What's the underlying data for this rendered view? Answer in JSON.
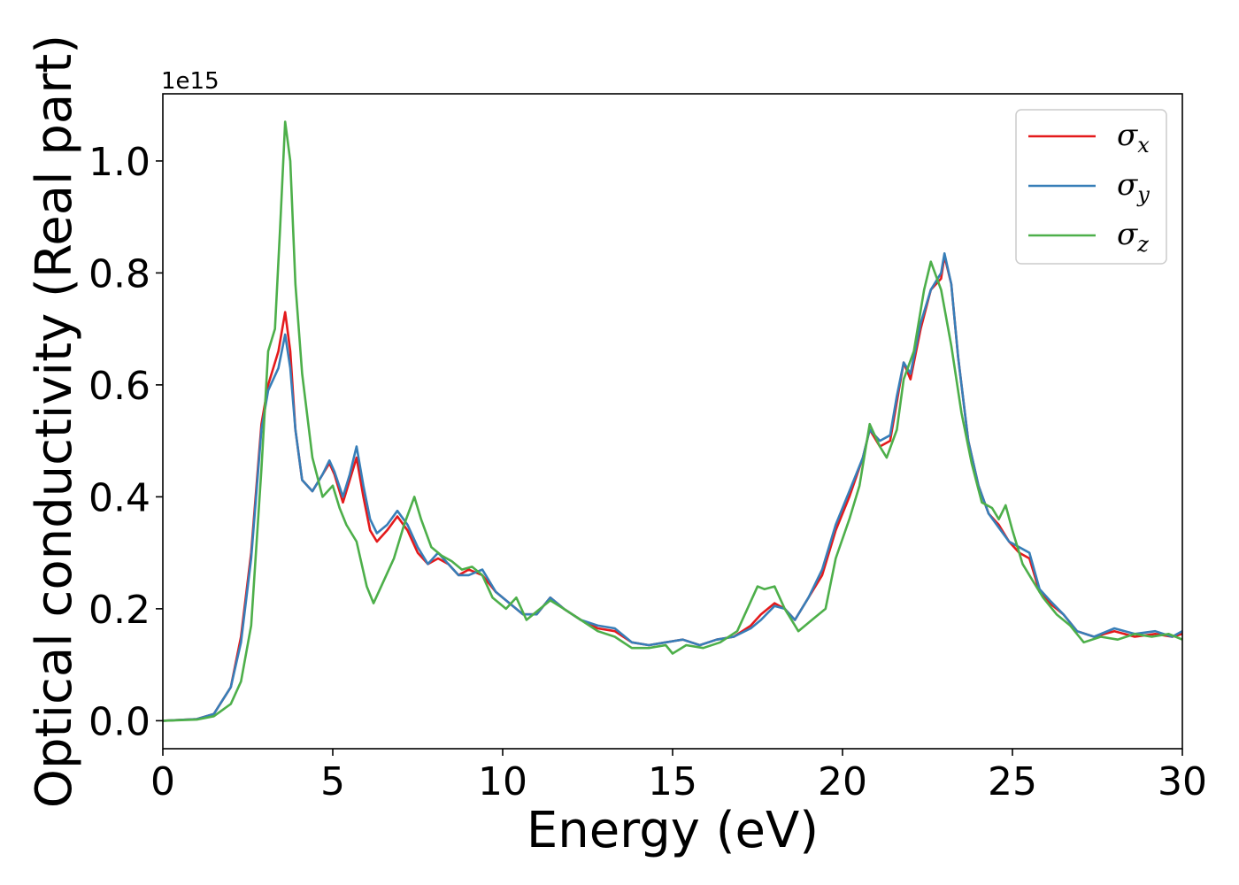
{
  "chart_data": {
    "type": "line",
    "xlabel": "Energy (eV)",
    "ylabel": "Optical conductivity (Real part)",
    "y_offset_text": "1e15",
    "xlim": [
      0,
      30
    ],
    "ylim": [
      -0.05,
      1.12
    ],
    "y_scale_factor": 1000000000000000.0,
    "x_ticks": [
      0,
      5,
      10,
      15,
      20,
      25,
      30
    ],
    "x_tick_labels": [
      "0",
      "5",
      "10",
      "15",
      "20",
      "25",
      "30"
    ],
    "y_ticks": [
      0.0,
      0.2,
      0.4,
      0.6,
      0.8,
      1.0
    ],
    "y_tick_labels": [
      "0.0",
      "0.2",
      "0.4",
      "0.6",
      "0.8",
      "1.0"
    ],
    "grid": false,
    "legend_position": "top-right",
    "series": [
      {
        "name": "σx",
        "legend_symbol": "σ",
        "legend_subscript": "x",
        "color": "#e41a1c",
        "points": [
          [
            0,
            0
          ],
          [
            1,
            0.003
          ],
          [
            1.5,
            0.012
          ],
          [
            2,
            0.06
          ],
          [
            2.3,
            0.15
          ],
          [
            2.6,
            0.3
          ],
          [
            2.9,
            0.53
          ],
          [
            3.1,
            0.6
          ],
          [
            3.4,
            0.66
          ],
          [
            3.6,
            0.73
          ],
          [
            3.75,
            0.66
          ],
          [
            3.9,
            0.52
          ],
          [
            4.1,
            0.43
          ],
          [
            4.4,
            0.41
          ],
          [
            4.7,
            0.44
          ],
          [
            4.9,
            0.46
          ],
          [
            5.05,
            0.44
          ],
          [
            5.3,
            0.39
          ],
          [
            5.5,
            0.43
          ],
          [
            5.7,
            0.47
          ],
          [
            5.9,
            0.4
          ],
          [
            6.1,
            0.34
          ],
          [
            6.3,
            0.32
          ],
          [
            6.6,
            0.34
          ],
          [
            6.9,
            0.365
          ],
          [
            7.2,
            0.34
          ],
          [
            7.5,
            0.3
          ],
          [
            7.8,
            0.28
          ],
          [
            8.1,
            0.29
          ],
          [
            8.4,
            0.28
          ],
          [
            8.7,
            0.26
          ],
          [
            9.0,
            0.27
          ],
          [
            9.4,
            0.26
          ],
          [
            9.8,
            0.23
          ],
          [
            10.2,
            0.21
          ],
          [
            10.6,
            0.19
          ],
          [
            11.0,
            0.19
          ],
          [
            11.4,
            0.22
          ],
          [
            11.8,
            0.2
          ],
          [
            12.3,
            0.18
          ],
          [
            12.8,
            0.165
          ],
          [
            13.3,
            0.16
          ],
          [
            13.8,
            0.14
          ],
          [
            14.3,
            0.135
          ],
          [
            14.8,
            0.14
          ],
          [
            15.3,
            0.145
          ],
          [
            15.8,
            0.135
          ],
          [
            16.3,
            0.145
          ],
          [
            16.8,
            0.15
          ],
          [
            17.3,
            0.17
          ],
          [
            17.6,
            0.19
          ],
          [
            18.0,
            0.21
          ],
          [
            18.3,
            0.2
          ],
          [
            18.6,
            0.18
          ],
          [
            19.0,
            0.22
          ],
          [
            19.4,
            0.26
          ],
          [
            19.8,
            0.34
          ],
          [
            20.2,
            0.4
          ],
          [
            20.6,
            0.47
          ],
          [
            20.8,
            0.52
          ],
          [
            21.1,
            0.49
          ],
          [
            21.4,
            0.5
          ],
          [
            21.6,
            0.57
          ],
          [
            21.8,
            0.64
          ],
          [
            22.0,
            0.61
          ],
          [
            22.3,
            0.7
          ],
          [
            22.6,
            0.77
          ],
          [
            22.9,
            0.79
          ],
          [
            23.0,
            0.83
          ],
          [
            23.2,
            0.78
          ],
          [
            23.4,
            0.65
          ],
          [
            23.7,
            0.5
          ],
          [
            24.0,
            0.42
          ],
          [
            24.3,
            0.37
          ],
          [
            24.6,
            0.35
          ],
          [
            24.9,
            0.32
          ],
          [
            25.2,
            0.3
          ],
          [
            25.5,
            0.29
          ],
          [
            25.8,
            0.23
          ],
          [
            26.1,
            0.21
          ],
          [
            26.5,
            0.19
          ],
          [
            26.9,
            0.16
          ],
          [
            27.4,
            0.15
          ],
          [
            28.0,
            0.16
          ],
          [
            28.6,
            0.15
          ],
          [
            29.2,
            0.155
          ],
          [
            29.7,
            0.15
          ],
          [
            30,
            0.155
          ]
        ]
      },
      {
        "name": "σy",
        "legend_symbol": "σ",
        "legend_subscript": "y",
        "color": "#377eb8",
        "points": [
          [
            0,
            0
          ],
          [
            1,
            0.003
          ],
          [
            1.5,
            0.012
          ],
          [
            2,
            0.06
          ],
          [
            2.3,
            0.14
          ],
          [
            2.6,
            0.29
          ],
          [
            2.9,
            0.52
          ],
          [
            3.1,
            0.59
          ],
          [
            3.4,
            0.63
          ],
          [
            3.6,
            0.69
          ],
          [
            3.75,
            0.63
          ],
          [
            3.9,
            0.52
          ],
          [
            4.1,
            0.43
          ],
          [
            4.4,
            0.41
          ],
          [
            4.7,
            0.44
          ],
          [
            4.9,
            0.465
          ],
          [
            5.05,
            0.445
          ],
          [
            5.3,
            0.4
          ],
          [
            5.5,
            0.44
          ],
          [
            5.7,
            0.49
          ],
          [
            5.9,
            0.42
          ],
          [
            6.1,
            0.36
          ],
          [
            6.3,
            0.335
          ],
          [
            6.6,
            0.35
          ],
          [
            6.9,
            0.375
          ],
          [
            7.2,
            0.35
          ],
          [
            7.5,
            0.31
          ],
          [
            7.8,
            0.28
          ],
          [
            8.1,
            0.3
          ],
          [
            8.4,
            0.28
          ],
          [
            8.7,
            0.26
          ],
          [
            9.0,
            0.26
          ],
          [
            9.4,
            0.27
          ],
          [
            9.8,
            0.23
          ],
          [
            10.2,
            0.21
          ],
          [
            10.6,
            0.19
          ],
          [
            11.0,
            0.19
          ],
          [
            11.4,
            0.22
          ],
          [
            11.8,
            0.2
          ],
          [
            12.3,
            0.18
          ],
          [
            12.8,
            0.17
          ],
          [
            13.3,
            0.165
          ],
          [
            13.8,
            0.14
          ],
          [
            14.3,
            0.135
          ],
          [
            14.8,
            0.14
          ],
          [
            15.3,
            0.145
          ],
          [
            15.8,
            0.135
          ],
          [
            16.3,
            0.145
          ],
          [
            16.8,
            0.15
          ],
          [
            17.3,
            0.165
          ],
          [
            17.6,
            0.18
          ],
          [
            18.0,
            0.205
          ],
          [
            18.3,
            0.2
          ],
          [
            18.6,
            0.18
          ],
          [
            19.0,
            0.22
          ],
          [
            19.4,
            0.27
          ],
          [
            19.8,
            0.35
          ],
          [
            20.2,
            0.41
          ],
          [
            20.6,
            0.47
          ],
          [
            20.8,
            0.52
          ],
          [
            21.1,
            0.5
          ],
          [
            21.4,
            0.51
          ],
          [
            21.6,
            0.58
          ],
          [
            21.8,
            0.64
          ],
          [
            22.0,
            0.62
          ],
          [
            22.3,
            0.71
          ],
          [
            22.6,
            0.77
          ],
          [
            22.9,
            0.8
          ],
          [
            23.0,
            0.835
          ],
          [
            23.2,
            0.78
          ],
          [
            23.4,
            0.65
          ],
          [
            23.7,
            0.5
          ],
          [
            24.0,
            0.42
          ],
          [
            24.3,
            0.37
          ],
          [
            24.6,
            0.345
          ],
          [
            24.9,
            0.32
          ],
          [
            25.2,
            0.31
          ],
          [
            25.5,
            0.3
          ],
          [
            25.8,
            0.235
          ],
          [
            26.1,
            0.215
          ],
          [
            26.5,
            0.19
          ],
          [
            26.9,
            0.16
          ],
          [
            27.4,
            0.15
          ],
          [
            28.0,
            0.165
          ],
          [
            28.6,
            0.155
          ],
          [
            29.2,
            0.16
          ],
          [
            29.7,
            0.15
          ],
          [
            30,
            0.16
          ]
        ]
      },
      {
        "name": "σz",
        "legend_symbol": "σ",
        "legend_subscript": "z",
        "color": "#4daf4a",
        "points": [
          [
            0,
            0
          ],
          [
            1,
            0.002
          ],
          [
            1.5,
            0.008
          ],
          [
            2,
            0.03
          ],
          [
            2.3,
            0.07
          ],
          [
            2.6,
            0.17
          ],
          [
            2.9,
            0.45
          ],
          [
            3.1,
            0.66
          ],
          [
            3.3,
            0.7
          ],
          [
            3.45,
            0.88
          ],
          [
            3.6,
            1.07
          ],
          [
            3.75,
            1.0
          ],
          [
            3.9,
            0.78
          ],
          [
            4.1,
            0.62
          ],
          [
            4.4,
            0.47
          ],
          [
            4.7,
            0.4
          ],
          [
            5.0,
            0.42
          ],
          [
            5.2,
            0.38
          ],
          [
            5.4,
            0.35
          ],
          [
            5.7,
            0.32
          ],
          [
            6.0,
            0.24
          ],
          [
            6.2,
            0.21
          ],
          [
            6.5,
            0.25
          ],
          [
            6.8,
            0.29
          ],
          [
            7.1,
            0.35
          ],
          [
            7.4,
            0.4
          ],
          [
            7.6,
            0.36
          ],
          [
            7.9,
            0.31
          ],
          [
            8.2,
            0.295
          ],
          [
            8.5,
            0.285
          ],
          [
            8.8,
            0.27
          ],
          [
            9.1,
            0.275
          ],
          [
            9.4,
            0.26
          ],
          [
            9.7,
            0.22
          ],
          [
            10.1,
            0.2
          ],
          [
            10.4,
            0.22
          ],
          [
            10.7,
            0.18
          ],
          [
            11.1,
            0.2
          ],
          [
            11.4,
            0.215
          ],
          [
            11.8,
            0.2
          ],
          [
            12.3,
            0.18
          ],
          [
            12.8,
            0.16
          ],
          [
            13.3,
            0.15
          ],
          [
            13.8,
            0.13
          ],
          [
            14.3,
            0.13
          ],
          [
            14.8,
            0.135
          ],
          [
            15.0,
            0.12
          ],
          [
            15.4,
            0.135
          ],
          [
            15.9,
            0.13
          ],
          [
            16.4,
            0.14
          ],
          [
            16.9,
            0.16
          ],
          [
            17.2,
            0.2
          ],
          [
            17.5,
            0.24
          ],
          [
            17.7,
            0.235
          ],
          [
            18.0,
            0.24
          ],
          [
            18.3,
            0.2
          ],
          [
            18.7,
            0.16
          ],
          [
            19.1,
            0.18
          ],
          [
            19.5,
            0.2
          ],
          [
            19.8,
            0.29
          ],
          [
            20.2,
            0.36
          ],
          [
            20.5,
            0.42
          ],
          [
            20.8,
            0.53
          ],
          [
            21.1,
            0.49
          ],
          [
            21.3,
            0.47
          ],
          [
            21.6,
            0.52
          ],
          [
            21.8,
            0.61
          ],
          [
            22.1,
            0.66
          ],
          [
            22.4,
            0.77
          ],
          [
            22.6,
            0.82
          ],
          [
            22.9,
            0.77
          ],
          [
            23.2,
            0.67
          ],
          [
            23.5,
            0.55
          ],
          [
            23.8,
            0.46
          ],
          [
            24.1,
            0.39
          ],
          [
            24.4,
            0.38
          ],
          [
            24.6,
            0.36
          ],
          [
            24.8,
            0.385
          ],
          [
            25.0,
            0.34
          ],
          [
            25.3,
            0.28
          ],
          [
            25.6,
            0.25
          ],
          [
            25.9,
            0.22
          ],
          [
            26.3,
            0.19
          ],
          [
            26.7,
            0.17
          ],
          [
            27.1,
            0.14
          ],
          [
            27.6,
            0.15
          ],
          [
            28.1,
            0.145
          ],
          [
            28.6,
            0.155
          ],
          [
            29.1,
            0.15
          ],
          [
            29.6,
            0.155
          ],
          [
            30,
            0.145
          ]
        ]
      }
    ]
  }
}
